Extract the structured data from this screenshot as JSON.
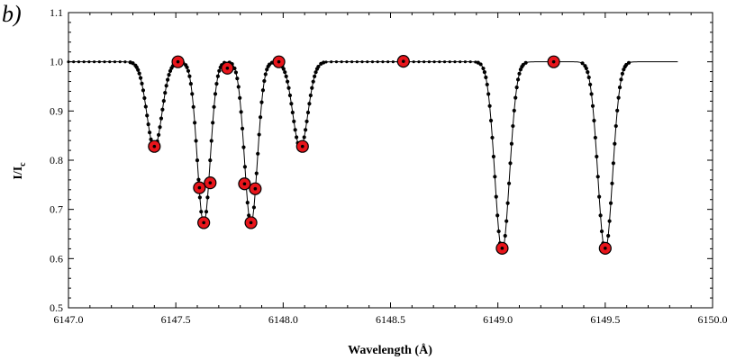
{
  "panel_label": "b)",
  "chart_data": {
    "type": "line",
    "title": "",
    "xlabel": "Wavelength (Å)",
    "ylabel_main": "I/I",
    "ylabel_sub": "c",
    "xlim": [
      6147.0,
      6150.0
    ],
    "ylim": [
      0.5,
      1.1
    ],
    "x_ticks": [
      "6147.0",
      "6147.5",
      "6148.0",
      "6148.5",
      "6149.0",
      "6149.5",
      "6150.0"
    ],
    "y_ticks": [
      "0.5",
      "0.6",
      "0.7",
      "0.8",
      "0.9",
      "1.0",
      "1.1"
    ],
    "grid": false,
    "series": [
      {
        "kind": "profile",
        "x_range": [
          6147.0,
          6149.84
        ],
        "continuum": 1.0,
        "lines": [
          {
            "center": 6147.4,
            "depth": 0.175,
            "width": 0.035
          },
          {
            "center": 6147.63,
            "depth": 0.33,
            "width": 0.03
          },
          {
            "center": 6147.85,
            "depth": 0.33,
            "width": 0.03
          },
          {
            "center": 6148.08,
            "depth": 0.175,
            "width": 0.035
          },
          {
            "center": 6149.02,
            "depth": 0.385,
            "width": 0.034
          },
          {
            "center": 6149.5,
            "depth": 0.385,
            "width": 0.034
          }
        ]
      },
      {
        "kind": "markers",
        "points": [
          {
            "x": 6147.4,
            "y": 0.828
          },
          {
            "x": 6147.51,
            "y": 1.0
          },
          {
            "x": 6147.61,
            "y": 0.744
          },
          {
            "x": 6147.63,
            "y": 0.673
          },
          {
            "x": 6147.66,
            "y": 0.754
          },
          {
            "x": 6147.74,
            "y": 0.987
          },
          {
            "x": 6147.82,
            "y": 0.752
          },
          {
            "x": 6147.85,
            "y": 0.673
          },
          {
            "x": 6147.87,
            "y": 0.742
          },
          {
            "x": 6147.98,
            "y": 1.0
          },
          {
            "x": 6148.09,
            "y": 0.828
          },
          {
            "x": 6148.56,
            "y": 1.001
          },
          {
            "x": 6149.02,
            "y": 0.621
          },
          {
            "x": 6149.26,
            "y": 1.0
          },
          {
            "x": 6149.5,
            "y": 0.621
          }
        ]
      }
    ]
  }
}
